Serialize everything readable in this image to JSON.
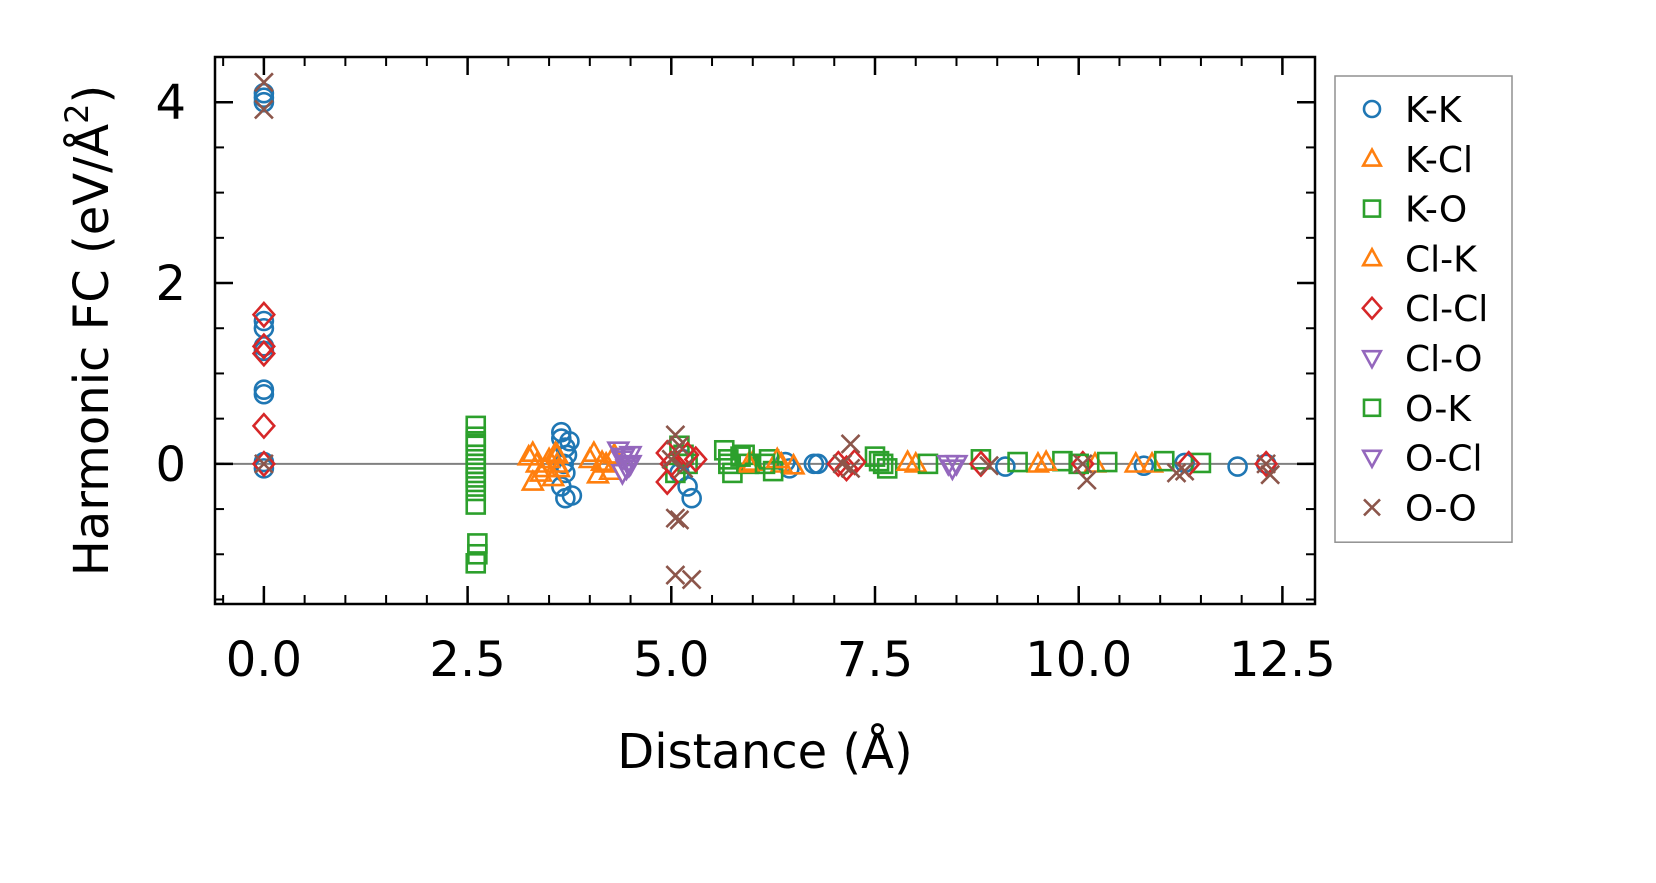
{
  "chart_data": {
    "type": "scatter",
    "title": "",
    "xlabel": "Distance (Å)",
    "ylabel": "Harmonic FC (eV/Å",
    "ylabel_sup": "2",
    "ylabel_close": ")",
    "xlim": [
      -0.6,
      12.9
    ],
    "ylim": [
      -1.55,
      4.5
    ],
    "xticks": [
      0.0,
      2.5,
      5.0,
      7.5,
      10.0,
      12.5
    ],
    "xtick_labels": [
      "0.0",
      "2.5",
      "5.0",
      "7.5",
      "10.0",
      "12.5"
    ],
    "yticks": [
      0,
      2,
      4
    ],
    "ytick_labels": [
      "0",
      "2",
      "4"
    ],
    "hline_y": 0,
    "legend_position": "outside-right",
    "series": [
      {
        "name": "K-K",
        "marker": "circle",
        "color": "#1f77b4",
        "points": [
          [
            0,
            4.1
          ],
          [
            0,
            4.05
          ],
          [
            0,
            4.0
          ],
          [
            0,
            1.58
          ],
          [
            0,
            1.5
          ],
          [
            0,
            1.3
          ],
          [
            0,
            1.25
          ],
          [
            0,
            0.82
          ],
          [
            0,
            0.77
          ],
          [
            0,
            0.02
          ],
          [
            0,
            -0.05
          ],
          [
            3.65,
            0.35
          ],
          [
            3.65,
            0.28
          ],
          [
            3.7,
            0.18
          ],
          [
            3.72,
            0.1
          ],
          [
            3.68,
            0.0
          ],
          [
            3.7,
            -0.1
          ],
          [
            3.65,
            -0.25
          ],
          [
            3.7,
            -0.38
          ],
          [
            3.78,
            -0.35
          ],
          [
            3.75,
            0.25
          ],
          [
            5.2,
            -0.25
          ],
          [
            5.25,
            -0.38
          ],
          [
            5.1,
            -0.1
          ],
          [
            5.15,
            0.05
          ],
          [
            6.45,
            -0.05
          ],
          [
            6.4,
            0.02
          ],
          [
            6.75,
            0.0
          ],
          [
            6.8,
            0.0
          ],
          [
            9.1,
            -0.03
          ],
          [
            10.8,
            -0.02
          ],
          [
            11.3,
            0.01
          ],
          [
            11.95,
            -0.03
          ],
          [
            12.3,
            0.0
          ]
        ]
      },
      {
        "name": "K-Cl",
        "marker": "triangle-up",
        "color": "#ff7f0e",
        "points": [
          [
            3.25,
            0.08
          ],
          [
            3.3,
            -0.2
          ],
          [
            3.35,
            0.0
          ],
          [
            3.4,
            -0.1
          ],
          [
            3.5,
            0.05
          ],
          [
            3.55,
            -0.15
          ],
          [
            3.6,
            0.1
          ],
          [
            3.62,
            -0.05
          ],
          [
            4.05,
            0.12
          ],
          [
            4.1,
            -0.12
          ],
          [
            4.15,
            0.02
          ],
          [
            4.25,
            -0.08
          ],
          [
            4.3,
            0.1
          ],
          [
            6.0,
            0.02
          ],
          [
            6.35,
            0.0
          ],
          [
            6.5,
            -0.02
          ],
          [
            8.0,
            0.0
          ],
          [
            9.5,
            0.0
          ],
          [
            10.2,
            0.0
          ],
          [
            10.9,
            0.0
          ]
        ]
      },
      {
        "name": "K-O",
        "marker": "square",
        "color": "#2ca02c",
        "points": [
          [
            2.6,
            0.42
          ],
          [
            2.6,
            0.3
          ],
          [
            2.6,
            0.2
          ],
          [
            2.6,
            0.1
          ],
          [
            2.6,
            0.0
          ],
          [
            2.6,
            -0.15
          ],
          [
            2.6,
            -0.3
          ],
          [
            2.6,
            -0.45
          ],
          [
            2.62,
            -0.88
          ],
          [
            2.62,
            -1.0
          ],
          [
            2.6,
            -1.1
          ],
          [
            5.1,
            0.2
          ],
          [
            5.15,
            0.1
          ],
          [
            5.05,
            -0.1
          ],
          [
            5.2,
            0.0
          ],
          [
            5.65,
            0.15
          ],
          [
            5.7,
            0.05
          ],
          [
            5.75,
            -0.1
          ],
          [
            5.9,
            0.1
          ],
          [
            5.95,
            0.0
          ],
          [
            6.2,
            0.05
          ],
          [
            6.25,
            -0.08
          ],
          [
            7.5,
            0.08
          ],
          [
            7.6,
            0.0
          ],
          [
            7.65,
            -0.05
          ],
          [
            8.15,
            0.0
          ],
          [
            8.8,
            0.05
          ],
          [
            9.25,
            0.02
          ],
          [
            9.8,
            0.03
          ],
          [
            10.35,
            0.02
          ],
          [
            11.05,
            0.03
          ],
          [
            11.5,
            0.01
          ]
        ]
      },
      {
        "name": "Cl-K",
        "marker": "triangle-up",
        "color": "#ff7f0e",
        "points": [
          [
            3.3,
            0.12
          ],
          [
            3.45,
            -0.05
          ],
          [
            3.58,
            0.12
          ],
          [
            3.6,
            0.0
          ],
          [
            4.0,
            0.05
          ],
          [
            4.2,
            0.0
          ],
          [
            5.95,
            0.0
          ],
          [
            6.3,
            0.05
          ],
          [
            7.9,
            0.02
          ],
          [
            9.6,
            0.02
          ],
          [
            10.7,
            0.0
          ]
        ]
      },
      {
        "name": "Cl-Cl",
        "marker": "diamond",
        "color": "#d62728",
        "points": [
          [
            0,
            1.65
          ],
          [
            0,
            1.3
          ],
          [
            0,
            1.22
          ],
          [
            0,
            0.42
          ],
          [
            0,
            0.0
          ],
          [
            4.95,
            0.12
          ],
          [
            4.95,
            -0.2
          ],
          [
            5.0,
            0.0
          ],
          [
            5.2,
            0.1
          ],
          [
            5.3,
            0.05
          ],
          [
            7.05,
            0.0
          ],
          [
            7.15,
            -0.05
          ],
          [
            7.25,
            0.02
          ],
          [
            8.8,
            0.0
          ],
          [
            10.05,
            0.0
          ],
          [
            11.35,
            0.0
          ],
          [
            12.3,
            0.0
          ]
        ]
      },
      {
        "name": "Cl-O",
        "marker": "triangle-down",
        "color": "#9467bd",
        "points": [
          [
            4.35,
            0.15
          ],
          [
            4.4,
            0.05
          ],
          [
            4.45,
            -0.05
          ],
          [
            4.5,
            0.1
          ],
          [
            4.4,
            -0.1
          ],
          [
            4.5,
            0.0
          ],
          [
            8.4,
            0.0
          ],
          [
            8.45,
            -0.05
          ]
        ]
      },
      {
        "name": "O-K",
        "marker": "square",
        "color": "#2ca02c",
        "points": [
          [
            2.6,
            0.25
          ],
          [
            2.6,
            -0.05
          ],
          [
            2.6,
            -0.2
          ],
          [
            5.7,
            0.0
          ],
          [
            5.85,
            0.08
          ],
          [
            6.15,
            0.0
          ],
          [
            7.55,
            0.03
          ],
          [
            10.0,
            0.0
          ]
        ]
      },
      {
        "name": "O-Cl",
        "marker": "triangle-down",
        "color": "#9467bd",
        "points": [
          [
            4.42,
            0.08
          ],
          [
            4.48,
            -0.02
          ],
          [
            8.5,
            0.0
          ]
        ]
      },
      {
        "name": "O-O",
        "marker": "x",
        "color": "#8c564b",
        "points": [
          [
            0,
            4.22
          ],
          [
            0,
            3.92
          ],
          [
            0,
            0.0
          ],
          [
            5.05,
            0.32
          ],
          [
            5.1,
            0.2
          ],
          [
            5.0,
            0.05
          ],
          [
            5.15,
            -0.05
          ],
          [
            5.05,
            -0.6
          ],
          [
            5.1,
            -0.62
          ],
          [
            5.05,
            -1.23
          ],
          [
            5.25,
            -1.28
          ],
          [
            7.2,
            0.22
          ],
          [
            7.1,
            0.0
          ],
          [
            7.2,
            -0.05
          ],
          [
            8.9,
            -0.02
          ],
          [
            10.1,
            -0.18
          ],
          [
            10.05,
            0.0
          ],
          [
            11.2,
            -0.1
          ],
          [
            11.3,
            -0.08
          ],
          [
            12.35,
            -0.12
          ],
          [
            12.3,
            0.0
          ]
        ]
      }
    ]
  }
}
